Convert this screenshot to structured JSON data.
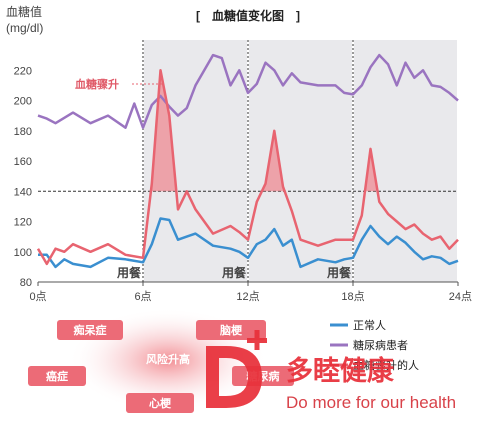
{
  "chart_data": {
    "type": "line",
    "title": "[　血糖值变化图　]",
    "ylabel": "血糖值",
    "yunit": "(mg/dl)",
    "ylim": [
      80,
      240
    ],
    "yticks": [
      80,
      100,
      120,
      140,
      160,
      180,
      200,
      220
    ],
    "xlim": [
      0,
      24
    ],
    "xticks": [
      0,
      6,
      12,
      18,
      24
    ],
    "xtick_labels": [
      "0点",
      "6点",
      "12点",
      "18点",
      "24点"
    ],
    "threshold": 140,
    "meal_times": [
      6,
      12,
      18
    ],
    "meal_label": "用餐",
    "shaded_ranges": [
      [
        6,
        12
      ],
      [
        12,
        18
      ],
      [
        18,
        24
      ]
    ],
    "spike_annotation": "血糖骤升",
    "series": [
      {
        "name": "正常人",
        "color": "#3a8fd0",
        "x": [
          0,
          0.5,
          1,
          1.5,
          2,
          3,
          4,
          5,
          6,
          6.5,
          7,
          7.5,
          8,
          8.5,
          9,
          10,
          11,
          11.5,
          12,
          12.5,
          13,
          13.5,
          14,
          14.5,
          15,
          16,
          17,
          17.5,
          18,
          18.5,
          19,
          19.5,
          20,
          20.5,
          21,
          21.5,
          22,
          22.5,
          23,
          23.5,
          24
        ],
        "y": [
          98,
          98,
          90,
          95,
          92,
          90,
          96,
          95,
          93,
          105,
          122,
          121,
          108,
          110,
          112,
          104,
          102,
          100,
          96,
          105,
          108,
          115,
          104,
          108,
          90,
          95,
          93,
          95,
          96,
          108,
          117,
          110,
          105,
          110,
          106,
          100,
          95,
          97,
          96,
          92,
          94
        ]
      },
      {
        "name": "糖尿病患者",
        "color": "#9a74c0",
        "x": [
          0,
          0.5,
          1,
          2,
          3,
          4,
          5,
          5.5,
          6,
          6.5,
          7,
          7.5,
          8,
          8.5,
          9,
          10,
          10.5,
          11,
          11.5,
          12,
          12.5,
          13,
          13.5,
          14,
          14.5,
          15,
          16,
          17,
          17.5,
          18,
          18.5,
          19,
          19.5,
          20,
          20.5,
          21,
          21.5,
          22,
          22.5,
          23,
          23.5,
          24
        ],
        "y": [
          190,
          188,
          185,
          192,
          185,
          190,
          182,
          198,
          182,
          197,
          203,
          196,
          190,
          195,
          210,
          230,
          228,
          210,
          220,
          205,
          211,
          225,
          220,
          210,
          218,
          212,
          210,
          210,
          205,
          204,
          210,
          222,
          230,
          224,
          210,
          225,
          215,
          220,
          210,
          209,
          205,
          200
        ]
      },
      {
        "name": "血糖骤升的人",
        "color": "#e86470",
        "x": [
          0,
          0.5,
          1,
          1.5,
          2,
          3,
          4,
          5,
          6,
          6.5,
          7,
          7.5,
          8,
          8.5,
          9,
          10,
          11,
          11.5,
          12,
          12.5,
          13,
          13.5,
          14,
          14.5,
          15,
          16,
          17,
          17.5,
          18,
          18.5,
          19,
          19.5,
          20,
          20.5,
          21,
          21.5,
          22,
          22.5,
          23,
          23.5,
          24
        ],
        "y": [
          102,
          92,
          102,
          100,
          105,
          100,
          105,
          98,
          96,
          145,
          220,
          190,
          128,
          140,
          128,
          112,
          117,
          113,
          108,
          133,
          145,
          180,
          143,
          127,
          108,
          104,
          108,
          108,
          108,
          124,
          168,
          133,
          125,
          120,
          115,
          118,
          112,
          108,
          110,
          102,
          108
        ]
      }
    ]
  },
  "legend": [
    {
      "label": "正常人",
      "color": "#3a8fd0"
    },
    {
      "label": "糖尿病患者",
      "color": "#9a74c0"
    },
    {
      "label": "血糖骤升的人",
      "color": "#e86470"
    }
  ],
  "risk": {
    "center_label": "风险升高",
    "items": [
      "痴呆症",
      "脑梗",
      "癌症",
      "糖尿病",
      "心梗"
    ],
    "pill_color": "#ec6b77"
  },
  "brand": {
    "name_cn": "多睦健康",
    "slogan": "Do more for our health",
    "color": "#e8303a"
  }
}
